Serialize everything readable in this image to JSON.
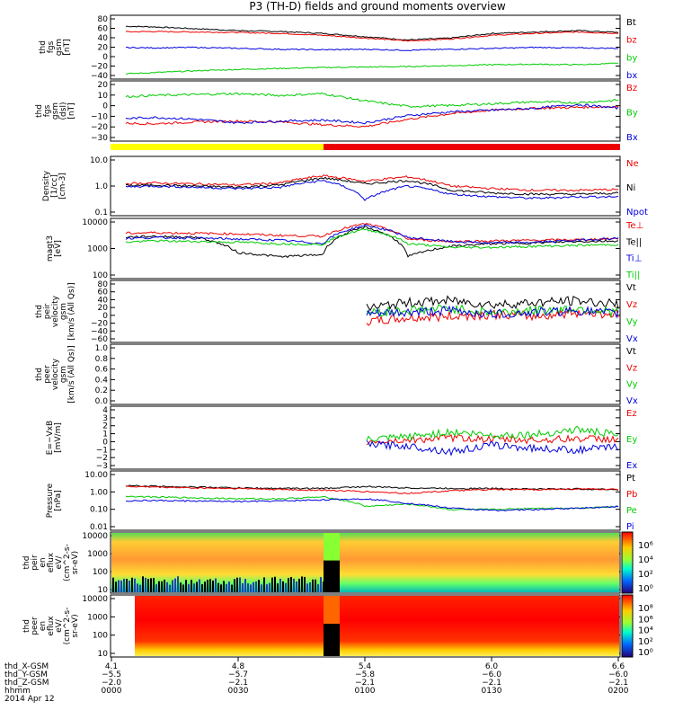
{
  "title": "P3 (TH-D) fields and ground moments overview",
  "colors": {
    "black": "#000000",
    "red": "#ee0000",
    "green": "#00cc00",
    "blue": "#0000dd",
    "yellow": "#ffff00",
    "bar_red": "#ee0000"
  },
  "chart_data": [
    {
      "type": "line",
      "panel": "fgs-gsm",
      "ylabel": [
        "thd",
        "fgs",
        "gsm",
        "[nT]"
      ],
      "yticks": [
        "80",
        "60",
        "40",
        "20",
        "0",
        "−20",
        "−40"
      ],
      "ylim": [
        -40,
        85
      ],
      "series": [
        {
          "name": "Bt",
          "color": "black",
          "values": [
            68,
            66,
            62,
            58,
            56,
            52,
            45,
            38,
            42,
            52,
            55,
            58,
            54
          ]
        },
        {
          "name": "bz",
          "color": "red",
          "values": [
            55,
            56,
            55,
            54,
            52,
            48,
            42,
            36,
            40,
            48,
            52,
            55,
            52
          ]
        },
        {
          "name": "by",
          "color": "green",
          "values": [
            -36,
            -32,
            -28,
            -25,
            -23,
            -21,
            -20,
            -19,
            -17,
            -15,
            -14,
            -15,
            -12
          ]
        },
        {
          "name": "bx",
          "color": "blue",
          "values": [
            22,
            21,
            22,
            20,
            18,
            17,
            18,
            16,
            18,
            20,
            22,
            21,
            20
          ]
        }
      ]
    },
    {
      "type": "line",
      "panel": "fgs-gsm-zoom",
      "ylabel": [
        "thd",
        "fgs",
        "gsm",
        "(dsl)",
        "[nT]"
      ],
      "yticks": [
        "20",
        "10",
        "0",
        "−10",
        "−20",
        "−30"
      ],
      "ylim": [
        -35,
        25
      ],
      "series": [
        {
          "name": "Bz",
          "color": "red",
          "values": [
            -18,
            -19,
            -17,
            -16,
            -17,
            -20,
            -22,
            -14,
            -8,
            -4,
            -2,
            -1,
            0
          ]
        },
        {
          "name": "By",
          "color": "green",
          "values": [
            10,
            12,
            13,
            14,
            12,
            14,
            6,
            0,
            1,
            3,
            5,
            4,
            7
          ]
        },
        {
          "name": "Bx",
          "color": "blue",
          "values": [
            -14,
            -12,
            -14,
            -18,
            -16,
            -15,
            -18,
            -10,
            -6,
            -4,
            -2,
            2,
            -2
          ]
        }
      ]
    },
    {
      "type": "line",
      "panel": "density",
      "log": true,
      "ylabel": [
        "Density",
        "[1/cc]",
        "[cm-3]"
      ],
      "yticks": [
        "10.0",
        "1.0",
        "0.1"
      ],
      "ylim": [
        0.1,
        10
      ],
      "series": [
        {
          "name": "Ne",
          "color": "red",
          "values": [
            1.2,
            1.3,
            1.2,
            1.1,
            1.3,
            2.4,
            1.5,
            2.2,
            1.0,
            0.8,
            0.7,
            0.7,
            0.75
          ]
        },
        {
          "name": "Ni",
          "color": "black",
          "values": [
            1.0,
            1.1,
            1.0,
            0.9,
            1.1,
            2.0,
            1.2,
            1.6,
            0.7,
            0.55,
            0.5,
            0.5,
            0.55
          ]
        },
        {
          "name": "Npot",
          "color": "blue",
          "values": [
            0.9,
            1.0,
            0.9,
            0.8,
            0.9,
            1.6,
            0.3,
            1.0,
            0.5,
            0.4,
            0.35,
            0.4,
            0.4
          ]
        }
      ]
    },
    {
      "type": "line",
      "panel": "temperature",
      "log": true,
      "ylabel": [
        "magt3",
        "[eV]"
      ],
      "yticks": [
        "10000",
        "1000",
        "100"
      ],
      "ylim": [
        100,
        10000
      ],
      "series": [
        {
          "name": "Te⊥",
          "color": "red",
          "values": [
            3500,
            3800,
            3600,
            3400,
            3000,
            2800,
            8000,
            2200,
            1800,
            1900,
            2000,
            2100,
            2300
          ]
        },
        {
          "name": "Te||",
          "color": "black",
          "values": [
            2500,
            2800,
            2600,
            700,
            500,
            600,
            6000,
            500,
            1200,
            1500,
            1600,
            1800,
            1900
          ]
        },
        {
          "name": "Ti⊥",
          "color": "blue",
          "values": [
            2200,
            2500,
            2400,
            2200,
            2000,
            1500,
            7000,
            2500,
            1800,
            1600,
            1700,
            2000,
            2400
          ]
        },
        {
          "name": "Ti||",
          "color": "green",
          "values": [
            1600,
            1900,
            1800,
            1700,
            1500,
            1400,
            5000,
            1500,
            1100,
            1100,
            1200,
            1300,
            1400
          ]
        }
      ]
    },
    {
      "type": "line",
      "panel": "peir-velocity",
      "ylabel": [
        "thd",
        "peir",
        "velocity",
        "gsm",
        "[km/s (All Qs)]"
      ],
      "yticks": [
        "80",
        "60",
        "40",
        "20",
        "0",
        "−20",
        "−40",
        "−60"
      ],
      "ylim": [
        -60,
        85
      ],
      "series": [
        {
          "name": "Vt",
          "color": "black",
          "values": [
            null,
            null,
            null,
            null,
            null,
            null,
            20,
            35,
            40,
            30,
            35,
            40,
            30
          ]
        },
        {
          "name": "Vz",
          "color": "red",
          "values": [
            null,
            null,
            null,
            null,
            null,
            null,
            -15,
            -5,
            0,
            5,
            0,
            10,
            5
          ]
        },
        {
          "name": "Vy",
          "color": "green",
          "values": [
            null,
            null,
            null,
            null,
            null,
            null,
            10,
            15,
            20,
            10,
            15,
            20,
            10
          ]
        },
        {
          "name": "Vx",
          "color": "blue",
          "values": [
            null,
            null,
            null,
            null,
            null,
            null,
            5,
            10,
            15,
            5,
            10,
            15,
            5
          ]
        }
      ]
    },
    {
      "type": "line",
      "panel": "peer-velocity",
      "ylabel": [
        "thd",
        "peer",
        "velocity",
        "gsm",
        "[km/s (All Qs)]"
      ],
      "yticks": [
        "1.0",
        "0.8",
        "0.6",
        "0.4",
        "0.2",
        "0.0"
      ],
      "ylim": [
        0,
        1
      ],
      "series": [
        {
          "name": "Vt",
          "color": "black",
          "values": []
        },
        {
          "name": "Vz",
          "color": "red",
          "values": []
        },
        {
          "name": "Vy",
          "color": "green",
          "values": []
        },
        {
          "name": "Vx",
          "color": "blue",
          "values": []
        }
      ]
    },
    {
      "type": "line",
      "panel": "efield",
      "ylabel": [
        "E=−VxB",
        "[mV/m]"
      ],
      "yticks": [
        "4",
        "3",
        "2",
        "1",
        "0",
        "−1",
        "−2",
        "−3"
      ],
      "ylim": [
        -3,
        4
      ],
      "series": [
        {
          "name": "Ez",
          "color": "red",
          "values": [
            null,
            null,
            null,
            null,
            null,
            null,
            0,
            0.2,
            0.5,
            0.3,
            0.2,
            0.4,
            0.3
          ]
        },
        {
          "name": "Ey",
          "color": "green",
          "values": [
            null,
            null,
            null,
            null,
            null,
            null,
            0.2,
            0.6,
            1.2,
            0.8,
            0.9,
            1.5,
            0.8
          ]
        },
        {
          "name": "Ex",
          "color": "blue",
          "values": [
            null,
            null,
            null,
            null,
            null,
            null,
            -0.3,
            -0.5,
            -1.2,
            -0.4,
            -0.8,
            -1.0,
            -0.6
          ]
        }
      ]
    },
    {
      "type": "line",
      "panel": "pressure",
      "log": true,
      "ylabel": [
        "Pressure",
        "[nPa]"
      ],
      "yticks": [
        "10.00",
        "1.00",
        "0.10",
        "0.01"
      ],
      "ylim": [
        0.01,
        10
      ],
      "series": [
        {
          "name": "Pt",
          "color": "black",
          "values": [
            2.2,
            2.0,
            1.8,
            1.6,
            1.5,
            1.5,
            1.9,
            1.6,
            1.5,
            1.5,
            1.4,
            1.4,
            1.3
          ]
        },
        {
          "name": "Pb",
          "color": "red",
          "values": [
            2.0,
            1.8,
            1.6,
            1.5,
            1.3,
            1.2,
            1.0,
            0.8,
            1.1,
            1.3,
            1.3,
            1.4,
            1.3
          ]
        },
        {
          "name": "Pe",
          "color": "green",
          "values": [
            0.6,
            0.5,
            0.45,
            0.4,
            0.4,
            0.5,
            0.15,
            0.2,
            0.1,
            0.1,
            0.12,
            0.12,
            0.15
          ]
        },
        {
          "name": "Pi",
          "color": "blue",
          "values": [
            0.3,
            0.32,
            0.3,
            0.28,
            0.3,
            0.35,
            0.4,
            0.22,
            0.12,
            0.09,
            0.1,
            0.12,
            0.15
          ]
        }
      ]
    },
    {
      "type": "heatmap",
      "panel": "peir-eflux",
      "ylabel": [
        "thd",
        "peir",
        "en",
        "eflux",
        "eV/",
        "(cm^2-s-",
        "sr-eV)"
      ],
      "yticks": [
        "10000",
        "1000",
        "100",
        "10"
      ],
      "colorbar_ticks": [
        "10⁶",
        "10⁴",
        "10²",
        "10⁰"
      ]
    },
    {
      "type": "heatmap",
      "panel": "peer-eflux",
      "ylabel": [
        "thd",
        "peer",
        "en",
        "eflux",
        "eV/",
        "(cm^2-s-",
        "sr-eV)"
      ],
      "yticks": [
        "10000",
        "1000",
        "100",
        "10"
      ],
      "colorbar_ticks": [
        "10⁸",
        "10⁶",
        "10⁴",
        "10²",
        "10⁰"
      ]
    }
  ],
  "bottom_axis": {
    "row_labels": [
      "thd_X-GSM",
      "thd_Y-GSM",
      "thd_Z-GSM",
      "hhmm",
      "2014 Apr 12"
    ],
    "ticks": [
      {
        "x": "4.1",
        "y": "−5.5",
        "z": "−2.0",
        "t": "0000"
      },
      {
        "x": "4.8",
        "y": "−5.7",
        "z": "−2.1",
        "t": "0030"
      },
      {
        "x": "5.4",
        "y": "−5.8",
        "z": "−2.1",
        "t": "0100"
      },
      {
        "x": "6.0",
        "y": "−6.0",
        "z": "−2.1",
        "t": "0130"
      },
      {
        "x": "6.6",
        "y": "−6.0",
        "z": "−2.1",
        "t": "0200"
      }
    ]
  }
}
